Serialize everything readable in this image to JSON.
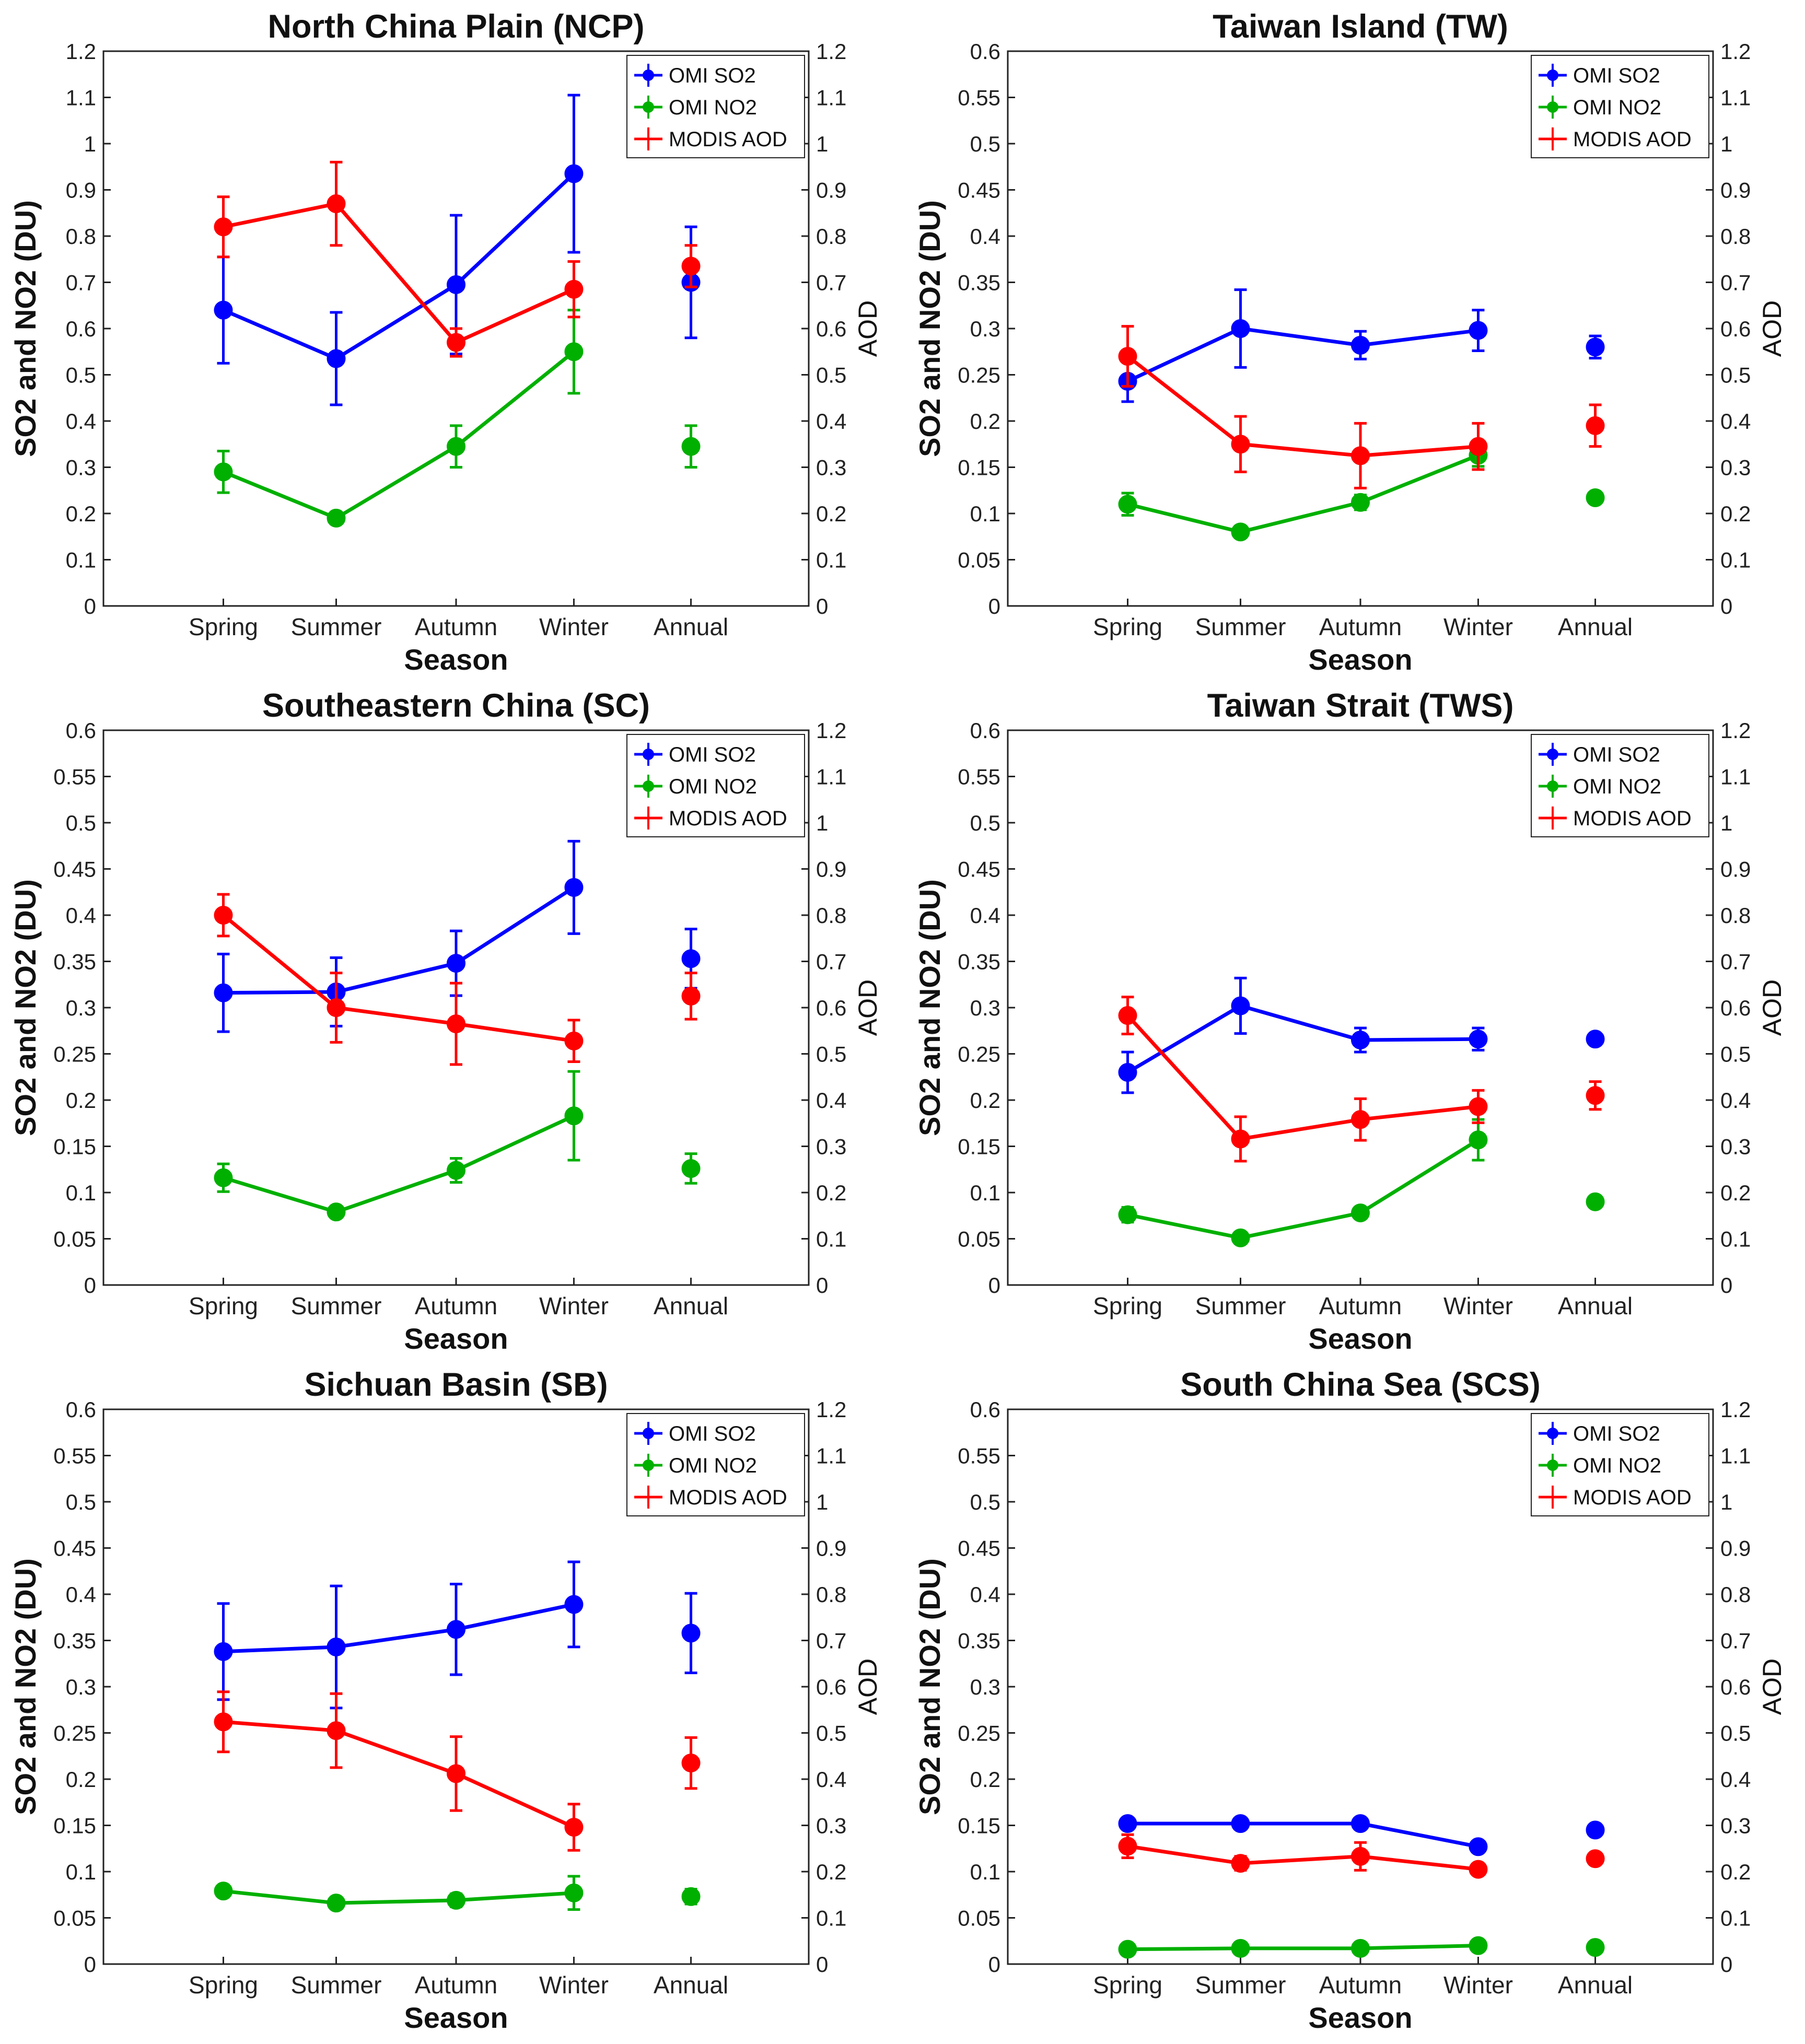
{
  "chart_data": [
    {
      "type": "line",
      "title": "North China Plain (NCP)",
      "xlabel": "Season",
      "ylabel": "SO2 and NO2 (DU)",
      "ylabel_right": "AOD",
      "categories": [
        "Spring",
        "Summer",
        "Autumn",
        "Winter",
        "Annual"
      ],
      "ylim": [
        0,
        1.2
      ],
      "ylim_right": [
        0,
        1.2
      ],
      "yticks": [
        "0",
        "0.1",
        "0.2",
        "0.3",
        "0.4",
        "0.5",
        "0.6",
        "0.7",
        "0.8",
        "0.9",
        "1",
        "1.1",
        "1.2"
      ],
      "yticks_right": [
        "0",
        "0.1",
        "0.2",
        "0.3",
        "0.4",
        "0.5",
        "0.6",
        "0.7",
        "0.8",
        "0.9",
        "1",
        "1.1",
        "1.2"
      ],
      "legend_position": "top-right",
      "series": [
        {
          "name": "OMI SO2",
          "color": "#0000ff",
          "axis": "left",
          "values": [
            0.64,
            0.535,
            0.695,
            0.935,
            0.7
          ],
          "errors": [
            0.115,
            0.1,
            0.15,
            0.17,
            0.12
          ]
        },
        {
          "name": "OMI NO2",
          "color": "#00b000",
          "axis": "left",
          "values": [
            0.29,
            0.19,
            0.345,
            0.55,
            0.345
          ],
          "errors": [
            0.045,
            0.012,
            0.045,
            0.09,
            0.045
          ]
        },
        {
          "name": "MODIS AOD",
          "color": "#ff0000",
          "axis": "right",
          "values": [
            0.82,
            0.87,
            0.57,
            0.685,
            0.735
          ],
          "errors": [
            0.065,
            0.09,
            0.03,
            0.06,
            0.045
          ]
        }
      ]
    },
    {
      "type": "line",
      "title": "Taiwan Island (TW)",
      "xlabel": "Season",
      "ylabel": "SO2 and NO2 (DU)",
      "ylabel_right": "AOD",
      "categories": [
        "Spring",
        "Summer",
        "Autumn",
        "Winter",
        "Annual"
      ],
      "ylim": [
        0,
        0.6
      ],
      "ylim_right": [
        0,
        1.2
      ],
      "yticks": [
        "0",
        "0.05",
        "0.1",
        "0.15",
        "0.2",
        "0.25",
        "0.3",
        "0.35",
        "0.4",
        "0.45",
        "0.5",
        "0.55",
        "0.6"
      ],
      "yticks_right": [
        "0",
        "0.1",
        "0.2",
        "0.3",
        "0.4",
        "0.5",
        "0.6",
        "0.7",
        "0.8",
        "0.9",
        "1",
        "1.1",
        "1.2"
      ],
      "legend_position": "top-right",
      "series": [
        {
          "name": "OMI SO2",
          "color": "#0000ff",
          "axis": "left",
          "values": [
            0.243,
            0.3,
            0.282,
            0.298,
            0.28
          ],
          "errors": [
            0.022,
            0.042,
            0.015,
            0.022,
            0.012
          ]
        },
        {
          "name": "OMI NO2",
          "color": "#00b000",
          "axis": "left",
          "values": [
            0.11,
            0.08,
            0.112,
            0.163,
            0.117
          ],
          "errors": [
            0.012,
            0.005,
            0.008,
            0.012,
            0.006
          ]
        },
        {
          "name": "MODIS AOD",
          "color": "#ff0000",
          "axis": "right",
          "values": [
            0.54,
            0.35,
            0.325,
            0.345,
            0.39
          ],
          "errors": [
            0.065,
            0.06,
            0.07,
            0.05,
            0.045
          ]
        }
      ]
    },
    {
      "type": "line",
      "title": "Southeastern China (SC)",
      "xlabel": "Season",
      "ylabel": "SO2 and NO2 (DU)",
      "ylabel_right": "AOD",
      "categories": [
        "Spring",
        "Summer",
        "Autumn",
        "Winter",
        "Annual"
      ],
      "ylim": [
        0,
        0.6
      ],
      "ylim_right": [
        0,
        1.2
      ],
      "yticks": [
        "0",
        "0.05",
        "0.1",
        "0.15",
        "0.2",
        "0.25",
        "0.3",
        "0.35",
        "0.4",
        "0.45",
        "0.5",
        "0.55",
        "0.6"
      ],
      "yticks_right": [
        "0",
        "0.1",
        "0.2",
        "0.3",
        "0.4",
        "0.5",
        "0.6",
        "0.7",
        "0.8",
        "0.9",
        "1",
        "1.1",
        "1.2"
      ],
      "legend_position": "top-right",
      "series": [
        {
          "name": "OMI SO2",
          "color": "#0000ff",
          "axis": "left",
          "values": [
            0.316,
            0.317,
            0.348,
            0.43,
            0.353
          ],
          "errors": [
            0.042,
            0.037,
            0.035,
            0.05,
            0.032
          ]
        },
        {
          "name": "OMI NO2",
          "color": "#00b000",
          "axis": "left",
          "values": [
            0.116,
            0.079,
            0.124,
            0.183,
            0.126
          ],
          "errors": [
            0.015,
            0.005,
            0.013,
            0.048,
            0.016
          ]
        },
        {
          "name": "MODIS AOD",
          "color": "#ff0000",
          "axis": "right",
          "values": [
            0.8,
            0.6,
            0.565,
            0.528,
            0.625
          ],
          "errors": [
            0.045,
            0.075,
            0.088,
            0.045,
            0.05
          ]
        }
      ]
    },
    {
      "type": "line",
      "title": "Taiwan Strait (TWS)",
      "xlabel": "Season",
      "ylabel": "SO2 and NO2 (DU)",
      "ylabel_right": "AOD",
      "categories": [
        "Spring",
        "Summer",
        "Autumn",
        "Winter",
        "Annual"
      ],
      "ylim": [
        0,
        0.6
      ],
      "ylim_right": [
        0,
        1.2
      ],
      "yticks": [
        "0",
        "0.05",
        "0.1",
        "0.15",
        "0.2",
        "0.25",
        "0.3",
        "0.35",
        "0.4",
        "0.45",
        "0.5",
        "0.55",
        "0.6"
      ],
      "yticks_right": [
        "0",
        "0.1",
        "0.2",
        "0.3",
        "0.4",
        "0.5",
        "0.6",
        "0.7",
        "0.8",
        "0.9",
        "1",
        "1.1",
        "1.2"
      ],
      "legend_position": "top-right",
      "series": [
        {
          "name": "OMI SO2",
          "color": "#0000ff",
          "axis": "left",
          "values": [
            0.23,
            0.302,
            0.265,
            0.266,
            0.266
          ],
          "errors": [
            0.022,
            0.03,
            0.013,
            0.012,
            0.006
          ]
        },
        {
          "name": "OMI NO2",
          "color": "#00b000",
          "axis": "left",
          "values": [
            0.076,
            0.051,
            0.078,
            0.157,
            0.09
          ],
          "errors": [
            0.008,
            0.004,
            0.005,
            0.022,
            0.005
          ]
        },
        {
          "name": "MODIS AOD",
          "color": "#ff0000",
          "axis": "right",
          "values": [
            0.583,
            0.316,
            0.358,
            0.386,
            0.41
          ],
          "errors": [
            0.04,
            0.048,
            0.045,
            0.035,
            0.03
          ]
        }
      ]
    },
    {
      "type": "line",
      "title": "Sichuan Basin (SB)",
      "xlabel": "Season",
      "ylabel": "SO2 and NO2 (DU)",
      "ylabel_right": "AOD",
      "categories": [
        "Spring",
        "Summer",
        "Autumn",
        "Winter",
        "Annual"
      ],
      "ylim": [
        0,
        0.6
      ],
      "ylim_right": [
        0,
        1.2
      ],
      "yticks": [
        "0",
        "0.05",
        "0.1",
        "0.15",
        "0.2",
        "0.25",
        "0.3",
        "0.35",
        "0.4",
        "0.45",
        "0.5",
        "0.55",
        "0.6"
      ],
      "yticks_right": [
        "0",
        "0.1",
        "0.2",
        "0.3",
        "0.4",
        "0.5",
        "0.6",
        "0.7",
        "0.8",
        "0.9",
        "1",
        "1.1",
        "1.2"
      ],
      "legend_position": "top-right",
      "series": [
        {
          "name": "OMI SO2",
          "color": "#0000ff",
          "axis": "left",
          "values": [
            0.338,
            0.343,
            0.362,
            0.389,
            0.358
          ],
          "errors": [
            0.052,
            0.066,
            0.049,
            0.046,
            0.043
          ]
        },
        {
          "name": "OMI NO2",
          "color": "#00b000",
          "axis": "left",
          "values": [
            0.079,
            0.066,
            0.069,
            0.077,
            0.073
          ],
          "errors": [
            0.006,
            0.005,
            0.007,
            0.018,
            0.008
          ]
        },
        {
          "name": "MODIS AOD",
          "color": "#ff0000",
          "axis": "right",
          "values": [
            0.524,
            0.505,
            0.412,
            0.296,
            0.435
          ],
          "errors": [
            0.065,
            0.08,
            0.08,
            0.05,
            0.055
          ]
        }
      ]
    },
    {
      "type": "line",
      "title": "South China Sea (SCS)",
      "xlabel": "Season",
      "ylabel": "SO2 and NO2 (DU)",
      "ylabel_right": "AOD",
      "categories": [
        "Spring",
        "Summer",
        "Autumn",
        "Winter",
        "Annual"
      ],
      "ylim": [
        0,
        0.6
      ],
      "ylim_right": [
        0,
        1.2
      ],
      "yticks": [
        "0",
        "0.05",
        "0.1",
        "0.15",
        "0.2",
        "0.25",
        "0.3",
        "0.35",
        "0.4",
        "0.45",
        "0.5",
        "0.55",
        "0.6"
      ],
      "yticks_right": [
        "0",
        "0.1",
        "0.2",
        "0.3",
        "0.4",
        "0.5",
        "0.6",
        "0.7",
        "0.8",
        "0.9",
        "1",
        "1.1",
        "1.2"
      ],
      "legend_position": "top-right",
      "series": [
        {
          "name": "OMI SO2",
          "color": "#0000ff",
          "axis": "left",
          "values": [
            0.152,
            0.152,
            0.152,
            0.127,
            0.145
          ],
          "errors": [
            0.004,
            0.004,
            0.004,
            0.004,
            0.003
          ]
        },
        {
          "name": "OMI NO2",
          "color": "#00b000",
          "axis": "left",
          "values": [
            0.016,
            0.017,
            0.017,
            0.02,
            0.018
          ],
          "errors": [
            0.002,
            0.002,
            0.002,
            0.002,
            0.002
          ]
        },
        {
          "name": "MODIS AOD",
          "color": "#ff0000",
          "axis": "right",
          "values": [
            0.255,
            0.218,
            0.233,
            0.205,
            0.228
          ],
          "errors": [
            0.025,
            0.015,
            0.03,
            0.01,
            0.01
          ]
        }
      ]
    }
  ]
}
